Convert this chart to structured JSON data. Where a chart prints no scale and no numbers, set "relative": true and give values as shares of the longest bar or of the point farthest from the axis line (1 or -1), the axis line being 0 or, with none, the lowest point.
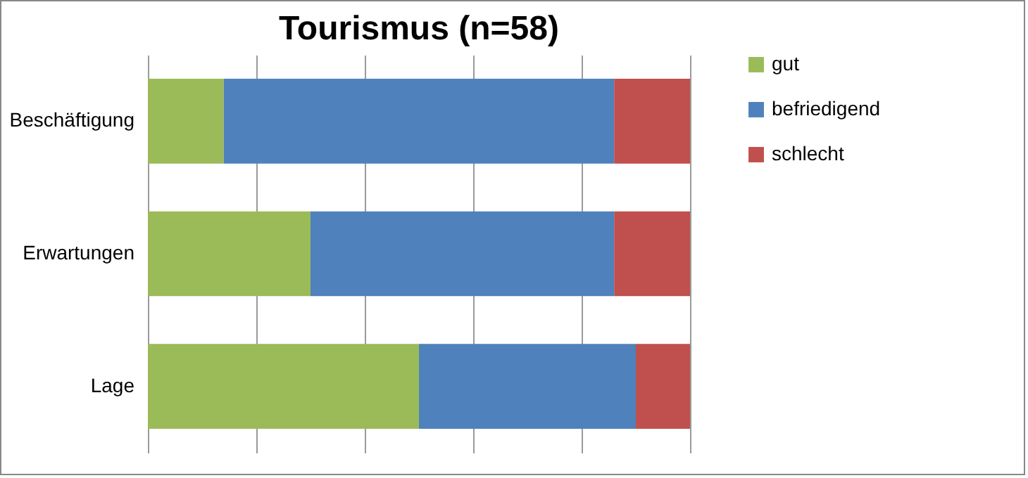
{
  "chart_data": {
    "type": "bar",
    "orientation": "horizontal",
    "stacked": true,
    "relative": true,
    "title": "Tourismus (n=58)",
    "categories": [
      "Beschäftigung",
      "Erwartungen",
      "Lage"
    ],
    "series": [
      {
        "name": "gut",
        "color": "#9bbb59",
        "values": [
          0.14,
          0.3,
          0.5
        ]
      },
      {
        "name": "befriedigend",
        "color": "#4f81bd",
        "values": [
          0.72,
          0.56,
          0.4
        ]
      },
      {
        "name": "schlecht",
        "color": "#c0504d",
        "values": [
          0.14,
          0.14,
          0.1
        ]
      }
    ],
    "grid": "x",
    "legend": "right"
  }
}
